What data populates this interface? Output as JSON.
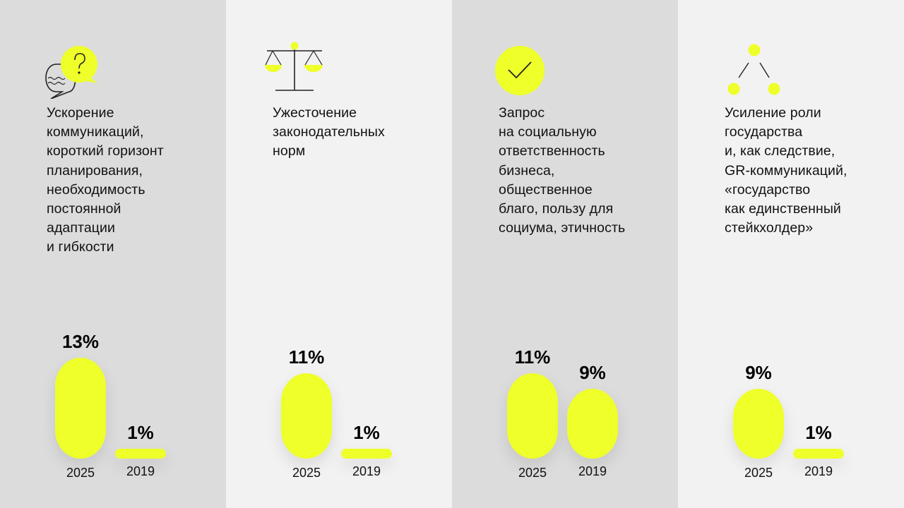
{
  "colors": {
    "accent": "#eeff2a",
    "panel_dark": "#dcdcdc",
    "panel_light": "#f2f2f2"
  },
  "chart_data": {
    "type": "bar",
    "categories": [
      "2025",
      "2019"
    ],
    "panels": [
      {
        "icon": "question-chat-bubbles-icon",
        "text": "Ускорение\nкоммуникаций,\nкороткий горизонт\nпланирования,\nнеобходимость\nпостоянной\nадаптации\nи гибкости",
        "values": [
          13,
          1
        ],
        "labels": [
          "13%",
          "1%"
        ]
      },
      {
        "icon": "scales-icon",
        "text": "Ужесточение\nзаконодательных\nнорм",
        "values": [
          11,
          1
        ],
        "labels": [
          "11%",
          "1%"
        ]
      },
      {
        "icon": "checkmark-circle-icon",
        "text": "Запрос\nна социальную\nответственность\nбизнеса,\nобщественное\nблаго, пользу для\nсоциума, этичность",
        "values": [
          11,
          9
        ],
        "labels": [
          "11%",
          "9%"
        ]
      },
      {
        "icon": "hierarchy-nodes-icon",
        "text": "Усиление роли\nгосударства\nи, как следствие,\nGR-коммуникаций,\n«государство\nкак единственный\nстейкхолдер»",
        "values": [
          9,
          1
        ],
        "labels": [
          "9%",
          "1%"
        ]
      }
    ]
  }
}
